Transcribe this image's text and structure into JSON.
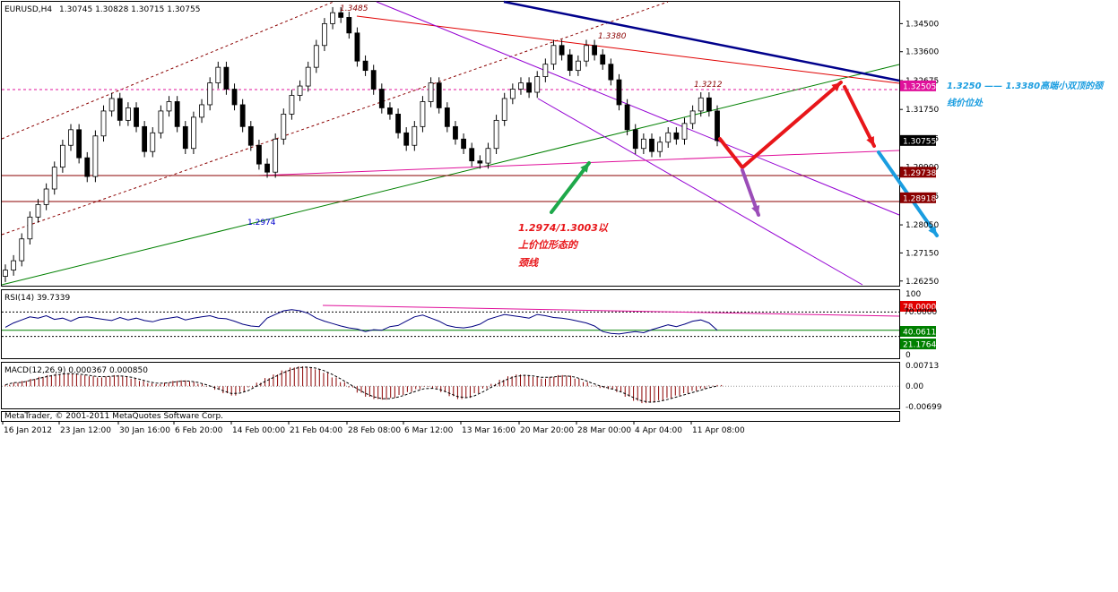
{
  "window": {
    "symbol_tf": "EURUSD,H4",
    "ohlc": "1.30745 1.30828 1.30715 1.30755",
    "copyright": "MetaTrader, © 2001-2011 MetaQuotes Software Corp."
  },
  "colors": {
    "bg": "#ffffff",
    "candle": "#000000",
    "channel": "#8b0000",
    "support_green": "#008000",
    "resistance_red": "#e00000",
    "blue_trend": "#00008b",
    "purple_channel": "#9400d3",
    "neckline": "#e0109b",
    "arrow_red": "#e8161a",
    "arrow_green": "#1ea84a",
    "arrow_purple": "#9b4db8",
    "arrow_blue": "#1a9de0",
    "rsi_line": "#000080",
    "macd_hist": "#8b0000"
  },
  "chart_data": [
    {
      "type": "candlestick",
      "title": "EURUSD,H4",
      "xlabels": [
        "16 Jan 2012",
        "23 Jan 12:00",
        "30 Jan 16:00",
        "6 Feb 20:00",
        "14 Feb 00:00",
        "21 Feb 04:00",
        "28 Feb 08:00",
        "6 Mar 12:00",
        "13 Mar 16:00",
        "20 Mar 20:00",
        "28 Mar 00:00",
        "4 Apr 04:00",
        "11 Apr 08:00"
      ],
      "ylim": [
        1.261,
        1.352
      ],
      "yticks": [
        "1.34500",
        "1.33600",
        "1.32675",
        "1.31750",
        "1.30825",
        "1.29900",
        "1.28975",
        "1.28050",
        "1.27150",
        "1.26250"
      ],
      "price_tags": [
        {
          "value": 1.32505,
          "label": "1.32505",
          "color": "#e0109b"
        },
        {
          "value": 1.30755,
          "label": "1.30755",
          "color": "#000000"
        },
        {
          "value": 1.29738,
          "label": "1.29738",
          "color": "#8b0000"
        },
        {
          "value": 1.28918,
          "label": "1.28918",
          "color": "#8b0000"
        }
      ],
      "closes": [
        1.266,
        1.269,
        1.276,
        1.283,
        1.287,
        1.292,
        1.299,
        1.306,
        1.311,
        1.302,
        1.296,
        1.309,
        1.317,
        1.321,
        1.314,
        1.318,
        1.312,
        1.304,
        1.31,
        1.317,
        1.32,
        1.312,
        1.305,
        1.315,
        1.319,
        1.326,
        1.331,
        1.324,
        1.319,
        1.312,
        1.306,
        1.3,
        1.2974,
        1.308,
        1.316,
        1.322,
        1.325,
        1.331,
        1.338,
        1.345,
        1.3485,
        1.347,
        1.342,
        1.333,
        1.33,
        1.324,
        1.318,
        1.316,
        1.31,
        1.306,
        1.312,
        1.32,
        1.326,
        1.318,
        1.312,
        1.308,
        1.305,
        1.301,
        1.3003,
        1.305,
        1.314,
        1.321,
        1.324,
        1.326,
        1.323,
        1.328,
        1.332,
        1.338,
        1.335,
        1.33,
        1.333,
        1.338,
        1.335,
        1.332,
        1.327,
        1.319,
        1.311,
        1.305,
        1.308,
        1.304,
        1.307,
        1.31,
        1.308,
        1.313,
        1.317,
        1.3212,
        1.317,
        1.3075
      ],
      "annotations": [
        {
          "text": "1.3485",
          "color": "#8b0000"
        },
        {
          "text": "1.3380",
          "color": "#8b0000"
        },
        {
          "text": "1.3212",
          "color": "#8b0000"
        },
        {
          "text": "1.2974",
          "color": "#0000cd"
        }
      ]
    },
    {
      "type": "line",
      "title": "RSI(14) 39.7339",
      "ylim": [
        0,
        100
      ],
      "levels": [
        70,
        30
      ],
      "tags": [
        {
          "label": "78.0000",
          "color": "#e00000"
        },
        {
          "label": "70.0000",
          "color": "#000000"
        },
        {
          "label": "40.0611",
          "color": "#008000"
        },
        {
          "label": "21.1764",
          "color": "#008000"
        }
      ],
      "axis_labels": [
        "100",
        "0"
      ],
      "values": [
        45,
        52,
        57,
        62,
        60,
        64,
        58,
        60,
        55,
        61,
        62,
        60,
        58,
        56,
        61,
        57,
        60,
        56,
        54,
        58,
        60,
        62,
        57,
        60,
        62,
        64,
        60,
        59,
        55,
        50,
        47,
        46,
        60,
        66,
        72,
        74,
        72,
        68,
        60,
        55,
        51,
        47,
        44,
        42,
        38,
        41,
        40,
        46,
        48,
        55,
        62,
        65,
        60,
        55,
        48,
        45,
        44,
        46,
        50,
        58,
        62,
        66,
        64,
        62,
        60,
        66,
        64,
        61,
        60,
        58,
        55,
        52,
        47,
        38,
        35,
        34,
        36,
        38,
        36,
        41,
        45,
        49,
        46,
        50,
        55,
        57,
        52,
        40
      ]
    },
    {
      "type": "bar",
      "title": "MACD(12,26,9) 0.000367 0.000850",
      "ylim": [
        -0.00699,
        0.00713
      ],
      "yticks": [
        "0.00713",
        "0.00",
        "-0.00699"
      ],
      "values": [
        0.0005,
        0.0012,
        0.0018,
        0.0025,
        0.0032,
        0.0038,
        0.0042,
        0.0045,
        0.0043,
        0.0038,
        0.0034,
        0.003,
        0.0033,
        0.0038,
        0.0034,
        0.0026,
        0.0018,
        0.001,
        0.0007,
        0.0012,
        0.0018,
        0.002,
        0.0016,
        0.0008,
        -0.0002,
        -0.0012,
        -0.0024,
        -0.0032,
        -0.002,
        -0.0004,
        0.0012,
        0.0028,
        0.004,
        0.0054,
        0.0064,
        0.0068,
        0.0065,
        0.0058,
        0.0046,
        0.003,
        0.0014,
        -0.0004,
        -0.0022,
        -0.0036,
        -0.0044,
        -0.0046,
        -0.004,
        -0.003,
        -0.002,
        -0.001,
        -0.0002,
        -0.0008,
        -0.002,
        -0.0034,
        -0.0044,
        -0.004,
        -0.0024,
        -0.0008,
        0.0008,
        0.0022,
        0.0034,
        0.004,
        0.0038,
        0.0032,
        0.0026,
        0.0032,
        0.0038,
        0.0036,
        0.0026,
        0.0014,
        0.0002,
        -0.0006,
        -0.001,
        -0.002,
        -0.0036,
        -0.005,
        -0.0058,
        -0.0056,
        -0.0048,
        -0.004,
        -0.0032,
        -0.0024,
        -0.0016,
        -0.0008,
        0.0002,
        0.0004
      ]
    }
  ],
  "notes": {
    "neckline_label_1": "1.2974/1.3003以",
    "neckline_label_2": "上价位形态的",
    "neckline_label_3": "颈线",
    "target_line_1": "1.3250 —— 1.3380高端小双顶的颈",
    "target_line_2": "线价位处"
  }
}
